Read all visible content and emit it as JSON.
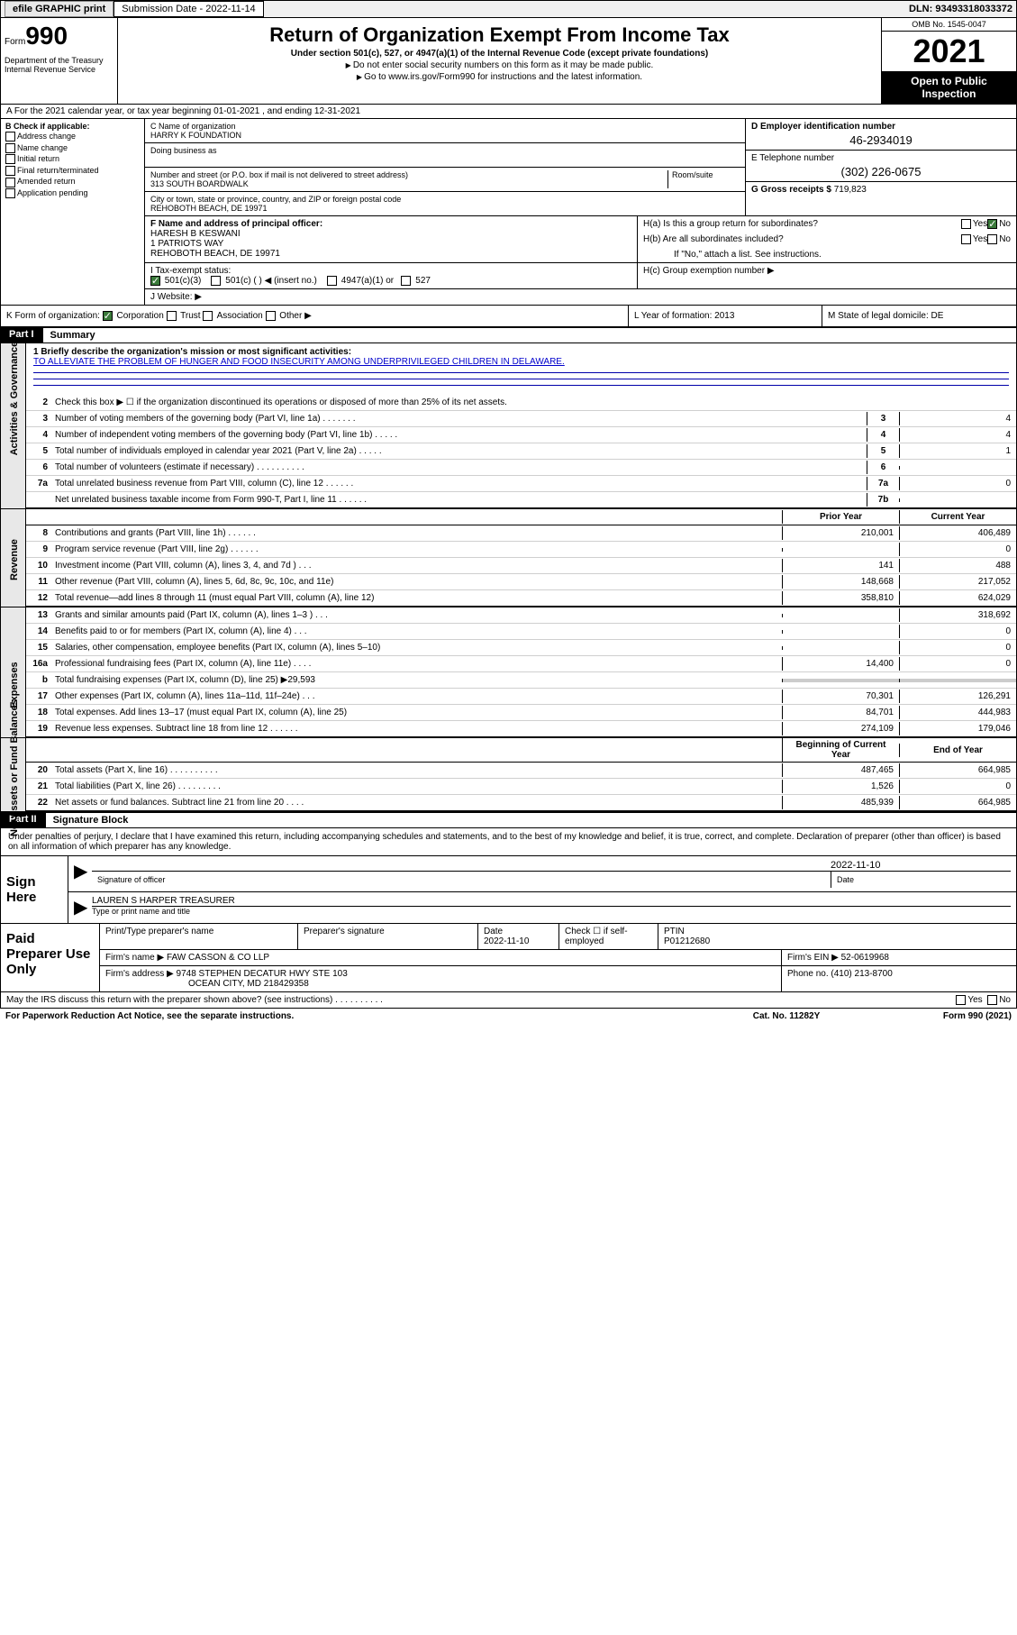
{
  "topbar": {
    "efile": "efile GRAPHIC print",
    "submission": "Submission Date - 2022-11-14",
    "dln": "DLN: 93493318033372"
  },
  "header": {
    "form_label": "Form",
    "form_num": "990",
    "dept": "Department of the Treasury\nInternal Revenue Service",
    "title": "Return of Organization Exempt From Income Tax",
    "sub": "Under section 501(c), 527, or 4947(a)(1) of the Internal Revenue Code (except private foundations)",
    "note1": "Do not enter social security numbers on this form as it may be made public.",
    "note2": "Go to www.irs.gov/Form990 for instructions and the latest information.",
    "omb": "OMB No. 1545-0047",
    "year": "2021",
    "open": "Open to Public Inspection"
  },
  "rowA": "A For the 2021 calendar year, or tax year beginning 01-01-2021   , and ending 12-31-2021",
  "colB": {
    "head": "B Check if applicable:",
    "items": [
      "Address change",
      "Name change",
      "Initial return",
      "Final return/terminated",
      "Amended return",
      "Application pending"
    ]
  },
  "colC": {
    "c_label": "C Name of organization",
    "c_name": "HARRY K FOUNDATION",
    "dba": "Doing business as",
    "street_label": "Number and street (or P.O. box if mail is not delivered to street address)",
    "street": "313 SOUTH BOARDWALK",
    "room": "Room/suite",
    "city_label": "City or town, state or province, country, and ZIP or foreign postal code",
    "city": "REHOBOTH BEACH, DE  19971"
  },
  "colD": {
    "d_label": "D Employer identification number",
    "ein": "46-2934019",
    "e_label": "E Telephone number",
    "phone": "(302) 226-0675",
    "g_label": "G Gross receipts $",
    "gross": "719,823"
  },
  "rowF": {
    "label": "F Name and address of principal officer:",
    "lines": [
      "HARESH B KESWANI",
      "1 PATRIOTS WAY",
      "REHOBOTH BEACH, DE  19971"
    ]
  },
  "rowH": {
    "ha": "H(a)  Is this a group return for subordinates?",
    "hb": "H(b)  Are all subordinates included?",
    "hb_note": "If \"No,\" attach a list. See instructions.",
    "hc": "H(c)  Group exemption number ▶",
    "yes": "Yes",
    "no": "No"
  },
  "rowI": {
    "label": "I     Tax-exempt status:",
    "opts": [
      "501(c)(3)",
      "501(c) (  ) ◀ (insert no.)",
      "4947(a)(1) or",
      "527"
    ]
  },
  "rowJ": "J     Website: ▶",
  "rowK": {
    "label": "K Form of organization:",
    "opts": [
      "Corporation",
      "Trust",
      "Association",
      "Other ▶"
    ],
    "l": "L Year of formation: 2013",
    "m": "M State of legal domicile: DE"
  },
  "part1": {
    "num": "Part I",
    "title": "Summary",
    "s1_label": "1   Briefly describe the organization's mission or most significant activities:",
    "mission": "TO ALLEVIATE THE PROBLEM OF HUNGER AND FOOD INSECURITY AMONG UNDERPRIVILEGED CHILDREN IN DELAWARE.",
    "lines": [
      {
        "n": "2",
        "t": "Check this box ▶ ☐  if the organization discontinued its operations or disposed of more than 25% of its net assets."
      },
      {
        "n": "3",
        "t": "Number of voting members of the governing body (Part VI, line 1a)   .    .    .    .    .    .    .",
        "b": "3",
        "v": "4"
      },
      {
        "n": "4",
        "t": "Number of independent voting members of the governing body (Part VI, line 1b)  .    .    .    .    .",
        "b": "4",
        "v": "4"
      },
      {
        "n": "5",
        "t": "Total number of individuals employed in calendar year 2021 (Part V, line 2a)   .    .    .    .    .",
        "b": "5",
        "v": "1"
      },
      {
        "n": "6",
        "t": "Total number of volunteers (estimate if necessary)   .    .    .    .    .    .    .    .    .    .",
        "b": "6",
        "v": ""
      },
      {
        "n": "7a",
        "t": "Total unrelated business revenue from Part VIII, column (C), line 12   .    .    .    .    .    .",
        "b": "7a",
        "v": "0"
      },
      {
        "n": "",
        "t": "Net unrelated business taxable income from Form 990-T, Part I, line 11   .    .    .    .    .    .",
        "b": "7b",
        "v": ""
      }
    ],
    "hd_prior": "Prior Year",
    "hd_curr": "Current Year",
    "revenue": [
      {
        "n": "8",
        "t": "Contributions and grants (Part VIII, line 1h)   .    .    .    .    .    .",
        "p": "210,001",
        "c": "406,489"
      },
      {
        "n": "9",
        "t": "Program service revenue (Part VIII, line 2g)   .    .    .    .    .    .",
        "p": "",
        "c": "0"
      },
      {
        "n": "10",
        "t": "Investment income (Part VIII, column (A), lines 3, 4, and 7d )   .    .    .",
        "p": "141",
        "c": "488"
      },
      {
        "n": "11",
        "t": "Other revenue (Part VIII, column (A), lines 5, 6d, 8c, 9c, 10c, and 11e)",
        "p": "148,668",
        "c": "217,052"
      },
      {
        "n": "12",
        "t": "Total revenue—add lines 8 through 11 (must equal Part VIII, column (A), line 12)",
        "p": "358,810",
        "c": "624,029"
      }
    ],
    "expenses": [
      {
        "n": "13",
        "t": "Grants and similar amounts paid (Part IX, column (A), lines 1–3 )   .    .    .",
        "p": "",
        "c": "318,692"
      },
      {
        "n": "14",
        "t": "Benefits paid to or for members (Part IX, column (A), line 4)   .    .    .",
        "p": "",
        "c": "0"
      },
      {
        "n": "15",
        "t": "Salaries, other compensation, employee benefits (Part IX, column (A), lines 5–10)",
        "p": "",
        "c": "0"
      },
      {
        "n": "16a",
        "t": "Professional fundraising fees (Part IX, column (A), line 11e)   .    .    .    .",
        "p": "14,400",
        "c": "0"
      },
      {
        "n": "b",
        "t": "Total fundraising expenses (Part IX, column (D), line 25) ▶29,593",
        "grey": true
      },
      {
        "n": "17",
        "t": "Other expenses (Part IX, column (A), lines 11a–11d, 11f–24e)   .    .    .",
        "p": "70,301",
        "c": "126,291"
      },
      {
        "n": "18",
        "t": "Total expenses. Add lines 13–17 (must equal Part IX, column (A), line 25)",
        "p": "84,701",
        "c": "444,983"
      },
      {
        "n": "19",
        "t": "Revenue less expenses. Subtract line 18 from line 12   .    .    .    .    .    .",
        "p": "274,109",
        "c": "179,046"
      }
    ],
    "hd_begin": "Beginning of Current Year",
    "hd_end": "End of Year",
    "net": [
      {
        "n": "20",
        "t": "Total assets (Part X, line 16)  .    .    .    .    .    .    .    .    .    .",
        "p": "487,465",
        "c": "664,985"
      },
      {
        "n": "21",
        "t": "Total liabilities (Part X, line 26)   .    .    .    .    .    .    .    .    .",
        "p": "1,526",
        "c": "0"
      },
      {
        "n": "22",
        "t": "Net assets or fund balances. Subtract line 21 from line 20   .    .    .    .",
        "p": "485,939",
        "c": "664,985"
      }
    ]
  },
  "part2": {
    "num": "Part II",
    "title": "Signature Block",
    "decl": "Under penalties of perjury, I declare that I have examined this return, including accompanying schedules and statements, and to the best of my knowledge and belief, it is true, correct, and complete. Declaration of preparer (other than officer) is based on all information of which preparer has any knowledge."
  },
  "sign": {
    "label": "Sign Here",
    "sig_off": "Signature of officer",
    "date": "Date",
    "date_val": "2022-11-10",
    "name": "LAUREN S HARPER  TREASURER",
    "name_label": "Type or print name and title"
  },
  "prep": {
    "label": "Paid Preparer Use Only",
    "h1": "Print/Type preparer's name",
    "h2": "Preparer's signature",
    "h3": "Date",
    "h3v": "2022-11-10",
    "h4": "Check ☐ if self-employed",
    "h5": "PTIN",
    "h5v": "P01212680",
    "firm_label": "Firm's name    ▶",
    "firm": "FAW CASSON & CO LLP",
    "ein_label": "Firm's EIN ▶",
    "ein": "52-0619968",
    "addr_label": "Firm's address ▶",
    "addr1": "9748 STEPHEN DECATUR HWY STE 103",
    "addr2": "OCEAN CITY, MD  218429358",
    "phone_label": "Phone no.",
    "phone": "(410) 213-8700"
  },
  "footer": {
    "q": "May the IRS discuss this return with the preparer shown above? (see instructions)   .    .    .    .    .    .    .    .    .    .",
    "yes": "Yes",
    "no": "No",
    "pra": "For Paperwork Reduction Act Notice, see the separate instructions.",
    "cat": "Cat. No. 11282Y",
    "form": "Form 990 (2021)"
  }
}
